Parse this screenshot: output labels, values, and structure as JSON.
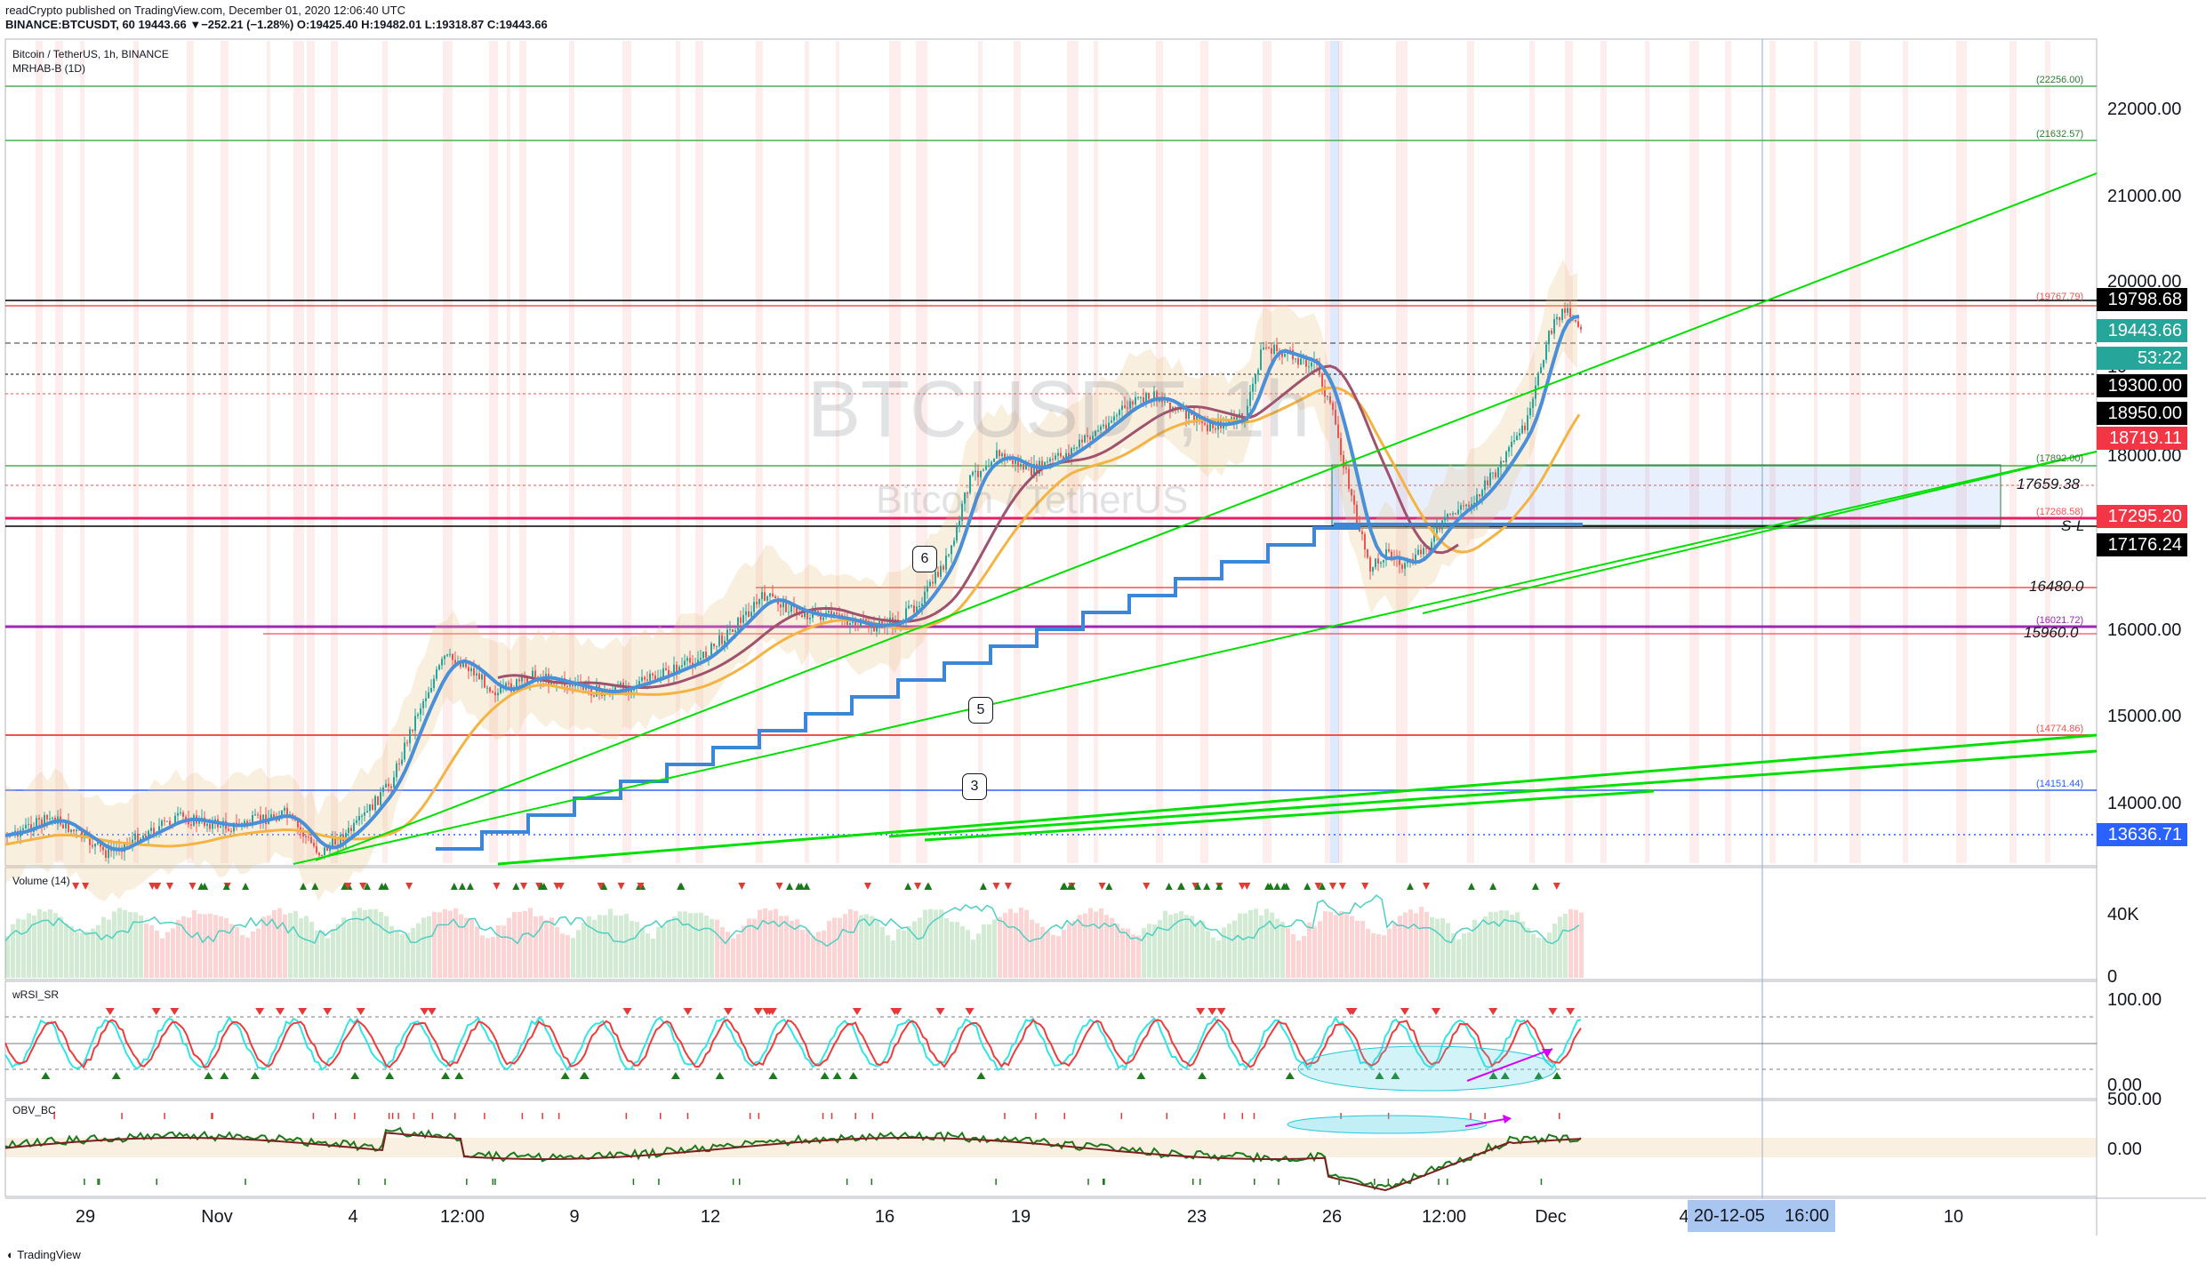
{
  "header": {
    "line1": "readCrypto published on TradingView.com, December 01, 2020 12:06:40 UTC",
    "line2": "BINANCE:BTCUSDT, 60  19443.66  ▼−252.21 (−1.28%)  O:19425.40  H:19482.01  L:19318.87  C:19443.66"
  },
  "legend": {
    "symbol": "Bitcoin / TetherUS, 1h, BINANCE",
    "indicator": "MRHAB-B (1D)"
  },
  "watermark": {
    "ticker": "BTCUSDT, 1h",
    "name": "Bitcoin / TetherUS"
  },
  "price_axis": [
    "22000.00",
    "21000.00",
    "20000.00",
    "19",
    "18000.00",
    "16000.00",
    "15000.00",
    "14000.00"
  ],
  "price_labels": [
    {
      "text": "19798.68",
      "color": "#000000"
    },
    {
      "text": "19443.66",
      "color": "#26a69a"
    },
    {
      "text": "53:22",
      "color": "#26a69a"
    },
    {
      "text": "19300.00",
      "color": "#000000"
    },
    {
      "text": "18950.00",
      "color": "#000000"
    },
    {
      "text": "18719.11",
      "color": "#f23645"
    },
    {
      "text": "17295.20",
      "color": "#f23645"
    },
    {
      "text": "17176.24",
      "color": "#000000"
    },
    {
      "text": "13636.71",
      "color": "#2962ff"
    }
  ],
  "level_labels": [
    "(22256.00)",
    "(21632.57)",
    "(19767.79)",
    "(17892.00)",
    "(17268.58)",
    "(16021.72)",
    "(14774.86)",
    "(14151.44)"
  ],
  "italic_labels": [
    "17659.38",
    "S-L",
    "16480.0",
    "15960.0"
  ],
  "wave_labels": [
    "6",
    "5",
    "3"
  ],
  "panes": {
    "volume": {
      "title": "Volume (14)",
      "ticks": [
        "40K",
        "0"
      ]
    },
    "wrsi": {
      "title": "wRSI_SR",
      "ticks": [
        "100.00",
        "0.00"
      ]
    },
    "obv": {
      "title": "OBV_BC",
      "ticks": [
        "500.00",
        "0.00"
      ]
    }
  },
  "time_axis": [
    "29",
    "Nov",
    "4",
    "12:00",
    "9",
    "12",
    "16",
    "19",
    "23",
    "26",
    "12:00",
    "Dec",
    "4",
    "10"
  ],
  "crosshair_time": {
    "date": "20-12-05",
    "time": "16:00"
  },
  "footer": {
    "brand": "TradingView"
  },
  "colors": {
    "up": "#26a69a",
    "down": "#ef5350",
    "green_line": "#00e000",
    "blue_stair": "#3c86d8",
    "purple": "#9c27b0"
  }
}
